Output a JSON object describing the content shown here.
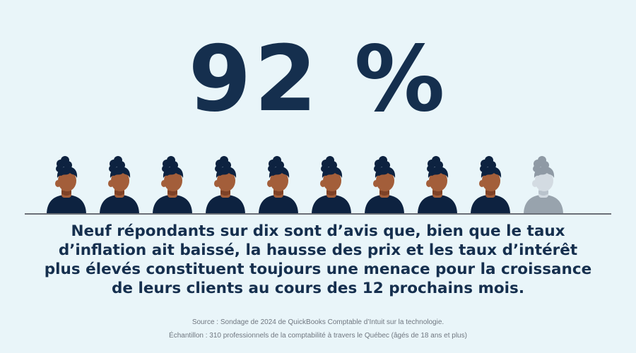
{
  "headline": {
    "value": "92 %"
  },
  "pictogram": {
    "total": 10,
    "highlighted": 9,
    "colors": {
      "hair": "#0d2240",
      "skin": "#a35e3a",
      "neck_shadow": "#7e4227",
      "shirt": "#0d2240",
      "muted_hair": "#8f9aa5",
      "muted_skin": "#d3dbe2",
      "muted_shirt": "#98a3ad"
    }
  },
  "statement": {
    "text": "Neuf répondants sur dix sont d’avis que, bien que le taux d’inflation ait baissé, la hausse des prix et les taux d’intérêt plus élevés constituent toujours une menace pour la croissance de leurs clients au cours des 12 prochains mois."
  },
  "footnotes": {
    "source": "Source : Sondage de 2024 de QuickBooks Comptable d’Intuit sur la technologie.",
    "sample": "Échantillon : 310 professionnels de la comptabilité à travers le Québec (âgés de 18 ans et plus)"
  }
}
